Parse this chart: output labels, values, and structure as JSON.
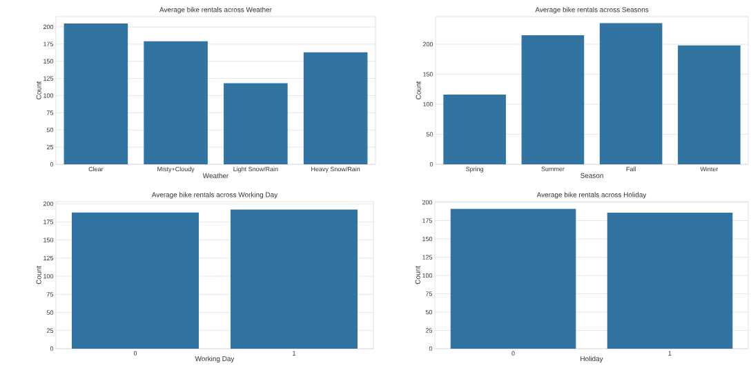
{
  "chart_data": [
    {
      "type": "bar",
      "title": "Average bike rentals across Weather",
      "xlabel": "Weather",
      "ylabel": "Count",
      "categories": [
        "Clear",
        "Misty+Cloudy",
        "Light Snow/Rain",
        "Heavy Snow/Rain"
      ],
      "values": [
        205,
        179,
        118,
        163
      ],
      "color": "#3274a1",
      "ylim": [
        0,
        215
      ],
      "yticks": [
        0,
        25,
        50,
        75,
        100,
        125,
        150,
        175,
        200
      ],
      "grid": "y"
    },
    {
      "type": "bar",
      "title": "Average bike rentals across Seasons",
      "xlabel": "Season",
      "ylabel": "Count",
      "categories": [
        "Spring",
        "Summer",
        "Fall",
        "Winter"
      ],
      "values": [
        116,
        215,
        235,
        198
      ],
      "color": "#3274a1",
      "ylim": [
        0,
        246
      ],
      "yticks": [
        0,
        50,
        100,
        150,
        200
      ],
      "grid": "y"
    },
    {
      "type": "bar",
      "title": "Average bike rentals across Working Day",
      "xlabel": "Working Day",
      "ylabel": "Count",
      "categories": [
        "0",
        "1"
      ],
      "values": [
        188,
        192
      ],
      "color": "#3274a1",
      "ylim": [
        0,
        203
      ],
      "yticks": [
        0,
        25,
        50,
        75,
        100,
        125,
        150,
        175,
        200
      ],
      "grid": "y"
    },
    {
      "type": "bar",
      "title": "Average bike rentals across Holiday",
      "xlabel": "Holiday",
      "ylabel": "Count",
      "categories": [
        "0",
        "1"
      ],
      "values": [
        191,
        186
      ],
      "color": "#3274a1",
      "ylim": [
        0,
        201
      ],
      "yticks": [
        0,
        25,
        50,
        75,
        100,
        125,
        150,
        175,
        200
      ],
      "grid": "y"
    }
  ]
}
